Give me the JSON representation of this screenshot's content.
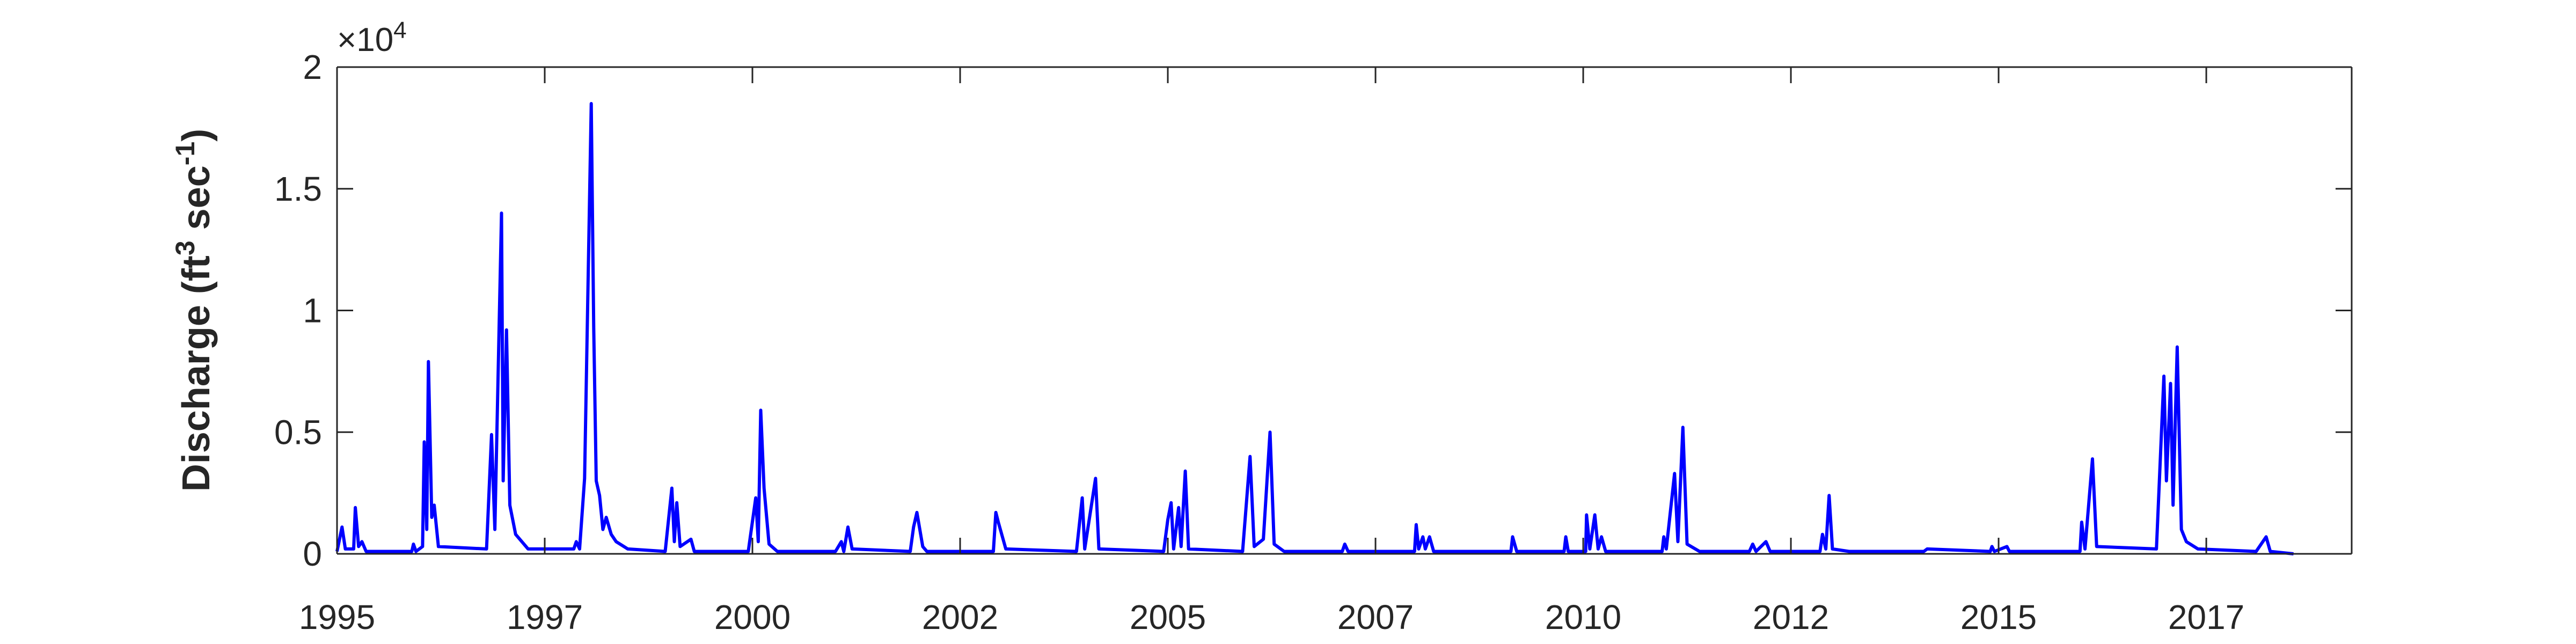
{
  "chart_data": {
    "type": "line",
    "ylabel": [
      "Discharge (ft",
      "3",
      " sec",
      "-1",
      ")"
    ],
    "multiplier": [
      "×10",
      "4"
    ],
    "xlim": [
      1995,
      2019.25
    ],
    "xticks": [
      {
        "value": 1995,
        "label": "1995"
      },
      {
        "value": 1997.5,
        "label": "1997"
      },
      {
        "value": 2000,
        "label": "2000"
      },
      {
        "value": 2002.5,
        "label": "2002"
      },
      {
        "value": 2005,
        "label": "2005"
      },
      {
        "value": 2007.5,
        "label": "2007"
      },
      {
        "value": 2010,
        "label": "2010"
      },
      {
        "value": 2012.5,
        "label": "2012"
      },
      {
        "value": 2015,
        "label": "2015"
      },
      {
        "value": 2017.5,
        "label": "2017"
      }
    ],
    "ylim": [
      0,
      2
    ],
    "yticks": [
      0,
      0.5,
      1,
      1.5,
      2
    ],
    "box": true,
    "series": [
      {
        "color": "#0000ff",
        "x": [
          1995.0,
          1995.06,
          1995.1,
          1995.2,
          1995.22,
          1995.26,
          1995.3,
          1995.35,
          1995.9,
          1995.92,
          1995.95,
          1996.03,
          1996.05,
          1996.08,
          1996.1,
          1996.14,
          1996.17,
          1996.22,
          1996.8,
          1996.86,
          1996.9,
          1996.98,
          1997.0,
          1997.04,
          1997.08,
          1997.15,
          1997.3,
          1997.85,
          1997.88,
          1997.92,
          1997.98,
          1998.06,
          1998.09,
          1998.12,
          1998.16,
          1998.2,
          1998.24,
          1998.3,
          1998.36,
          1998.5,
          1998.95,
          1999.03,
          1999.06,
          1999.09,
          1999.13,
          1999.26,
          1999.3,
          1999.95,
          2000.04,
          2000.07,
          2000.1,
          2000.14,
          2000.2,
          2000.3,
          2001.0,
          2001.07,
          2001.1,
          2001.15,
          2001.2,
          2001.9,
          2001.94,
          2001.98,
          2002.05,
          2002.1,
          2002.9,
          2002.93,
          2002.96,
          2003.05,
          2003.9,
          2003.97,
          2004.0,
          2004.13,
          2004.17,
          2004.95,
          2005.0,
          2005.04,
          2005.07,
          2005.13,
          2005.16,
          2005.21,
          2005.25,
          2005.9,
          2005.99,
          2006.04,
          2006.15,
          2006.23,
          2006.28,
          2006.4,
          2007.1,
          2007.13,
          2007.17,
          2007.97,
          2007.99,
          2008.02,
          2008.07,
          2008.1,
          2008.15,
          2008.2,
          2009.13,
          2009.15,
          2009.2,
          2009.77,
          2009.79,
          2009.82,
          2010.03,
          2010.04,
          2010.08,
          2010.14,
          2010.18,
          2010.22,
          2010.27,
          2010.95,
          2010.97,
          2011.0,
          2011.1,
          2011.14,
          2011.2,
          2011.25,
          2011.4,
          2012.0,
          2012.04,
          2012.08,
          2012.2,
          2012.25,
          2012.85,
          2012.88,
          2012.92,
          2012.96,
          2013.0,
          2013.2,
          2014.1,
          2014.14,
          2014.9,
          2014.92,
          2014.95,
          2015.1,
          2015.13,
          2015.98,
          2016.0,
          2016.04,
          2016.13,
          2016.18,
          2016.9,
          2016.99,
          2017.02,
          2017.07,
          2017.1,
          2017.15,
          2017.2,
          2017.26,
          2017.4,
          2018.1,
          2018.22,
          2018.27,
          2018.55
        ],
        "values": [
          0.01,
          0.11,
          0.02,
          0.02,
          0.19,
          0.03,
          0.05,
          0.01,
          0.01,
          0.04,
          0.01,
          0.03,
          0.46,
          0.1,
          0.79,
          0.15,
          0.2,
          0.03,
          0.02,
          0.49,
          0.1,
          1.4,
          0.3,
          0.92,
          0.2,
          0.08,
          0.02,
          0.02,
          0.05,
          0.02,
          0.31,
          1.85,
          0.93,
          0.3,
          0.24,
          0.1,
          0.15,
          0.08,
          0.05,
          0.02,
          0.01,
          0.27,
          0.05,
          0.21,
          0.03,
          0.06,
          0.01,
          0.01,
          0.23,
          0.05,
          0.59,
          0.27,
          0.04,
          0.01,
          0.01,
          0.05,
          0.01,
          0.11,
          0.02,
          0.01,
          0.11,
          0.17,
          0.03,
          0.01,
          0.01,
          0.17,
          0.13,
          0.02,
          0.01,
          0.23,
          0.02,
          0.31,
          0.02,
          0.01,
          0.14,
          0.21,
          0.02,
          0.19,
          0.03,
          0.34,
          0.02,
          0.01,
          0.4,
          0.03,
          0.06,
          0.5,
          0.04,
          0.01,
          0.01,
          0.04,
          0.01,
          0.01,
          0.12,
          0.02,
          0.07,
          0.02,
          0.07,
          0.01,
          0.01,
          0.07,
          0.01,
          0.01,
          0.07,
          0.01,
          0.01,
          0.16,
          0.02,
          0.16,
          0.02,
          0.07,
          0.01,
          0.01,
          0.07,
          0.02,
          0.33,
          0.05,
          0.52,
          0.04,
          0.01,
          0.01,
          0.04,
          0.01,
          0.05,
          0.01,
          0.01,
          0.08,
          0.02,
          0.24,
          0.02,
          0.01,
          0.01,
          0.02,
          0.01,
          0.03,
          0.01,
          0.03,
          0.01,
          0.01,
          0.13,
          0.02,
          0.39,
          0.03,
          0.02,
          0.73,
          0.3,
          0.7,
          0.2,
          0.85,
          0.1,
          0.05,
          0.02,
          0.01,
          0.07,
          0.01,
          0
        ]
      }
    ]
  }
}
